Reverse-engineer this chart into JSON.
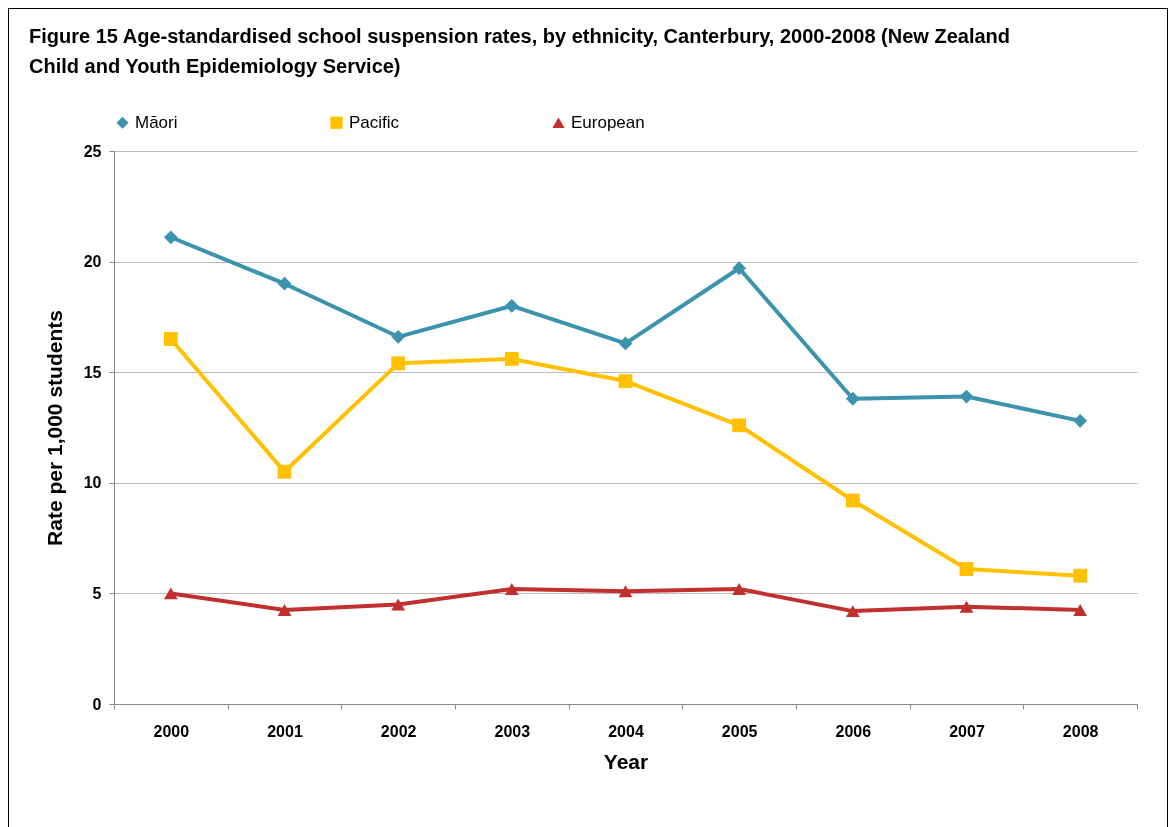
{
  "chart_data": {
    "type": "line",
    "title": "Figure 15 Age-standardised school suspension rates, by ethnicity, Canterbury, 2000-2008 (New Zealand Child and Youth Epidemiology Service)",
    "xlabel": "Year",
    "ylabel": "Rate per 1,000 students",
    "categories": [
      "2000",
      "2001",
      "2002",
      "2003",
      "2004",
      "2005",
      "2006",
      "2007",
      "2008"
    ],
    "series": [
      {
        "name": "Māori",
        "color": "#3b93ad",
        "marker": "diamond",
        "values": [
          21.1,
          19.0,
          16.6,
          18.0,
          16.3,
          19.7,
          13.8,
          13.9,
          12.8
        ]
      },
      {
        "name": "Pacific",
        "color": "#ffc000",
        "marker": "square",
        "values": [
          16.5,
          10.5,
          15.4,
          15.6,
          14.6,
          12.6,
          9.2,
          6.1,
          5.8
        ]
      },
      {
        "name": "European",
        "color": "#c0302f",
        "marker": "triangle",
        "values": [
          5.0,
          4.25,
          4.5,
          5.2,
          5.1,
          5.2,
          4.2,
          4.4,
          4.25
        ]
      }
    ],
    "ylim": [
      0,
      25
    ],
    "yticks": [
      0,
      5,
      10,
      15,
      20,
      25
    ],
    "grid": "y",
    "legend": "top",
    "line_style": "solid"
  }
}
